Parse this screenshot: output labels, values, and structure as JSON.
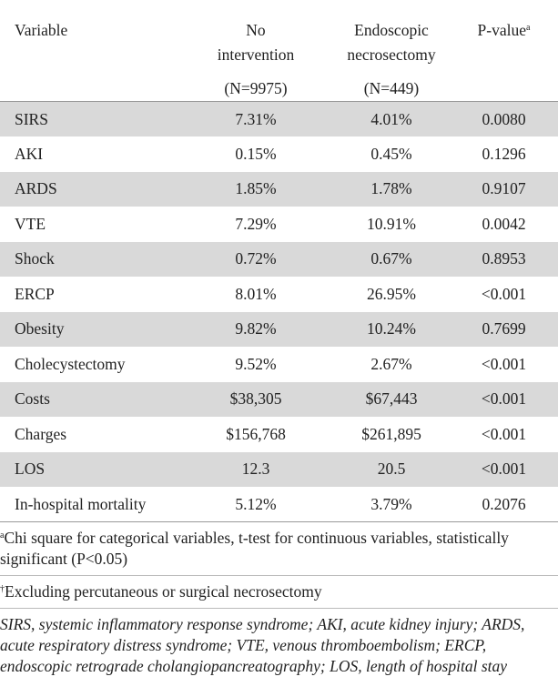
{
  "table": {
    "header": [
      {
        "lines": [
          "Variable"
        ]
      },
      {
        "lines": [
          "No",
          "intervention"
        ],
        "n": "(N=9975)"
      },
      {
        "lines": [
          "Endoscopic",
          "necrosectomy"
        ],
        "n": "(N=449)"
      },
      {
        "lines": [
          "P-value"
        ],
        "sup": "a"
      }
    ],
    "rows": [
      [
        "SIRS",
        "7.31%",
        "4.01%",
        "0.0080"
      ],
      [
        "AKI",
        "0.15%",
        "0.45%",
        "0.1296"
      ],
      [
        "ARDS",
        "1.85%",
        "1.78%",
        "0.9107"
      ],
      [
        "VTE",
        "7.29%",
        "10.91%",
        "0.0042"
      ],
      [
        "Shock",
        "0.72%",
        "0.67%",
        "0.8953"
      ],
      [
        "ERCP",
        "8.01%",
        "26.95%",
        "<0.001"
      ],
      [
        "Obesity",
        "9.82%",
        "10.24%",
        "0.7699"
      ],
      [
        "Cholecystectomy",
        "9.52%",
        "2.67%",
        "<0.001"
      ],
      [
        "Costs",
        "$38,305",
        "$67,443",
        "<0.001"
      ],
      [
        "Charges",
        "$156,768",
        "$261,895",
        "<0.001"
      ],
      [
        "LOS",
        "12.3",
        "20.5",
        "<0.001"
      ],
      [
        "In-hospital mortality",
        "5.12%",
        "3.79%",
        "0.2076"
      ]
    ]
  },
  "footnotes": [
    {
      "mark": "a",
      "text": "Chi square for categorical variables, t-test for continuous variables, statistically significant (P<0.05)"
    },
    {
      "mark": "†",
      "text": "Excluding percutaneous or surgical necrosectomy"
    },
    {
      "text": "SIRS, systemic inflammatory response syndrome; AKI, acute kidney injury; ARDS, acute respiratory distress syndrome; VTE, venous thromboembolism; ERCP, endoscopic retrograde cholangiopancreatography; LOS, length of hospital stay"
    }
  ]
}
